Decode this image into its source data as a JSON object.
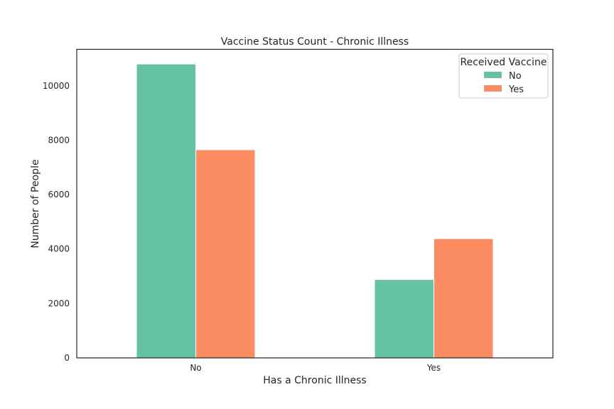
{
  "chart_data": {
    "type": "bar",
    "title": "Vaccine Status Count - Chronic Illness",
    "xlabel": "Has a Chronic Illness",
    "ylabel": "Number of People",
    "categories": [
      "No",
      "Yes"
    ],
    "series": [
      {
        "name": "No",
        "values": [
          10800,
          2880
        ],
        "color": "#66c2a5"
      },
      {
        "name": "Yes",
        "values": [
          7650,
          4380
        ],
        "color": "#fc8d62"
      }
    ],
    "ylim": [
      0,
      11340
    ],
    "yticks": [
      0,
      2000,
      4000,
      6000,
      8000,
      10000
    ],
    "grid": false,
    "legend": {
      "title": "Received Vaccine",
      "placement": "top-right"
    }
  }
}
